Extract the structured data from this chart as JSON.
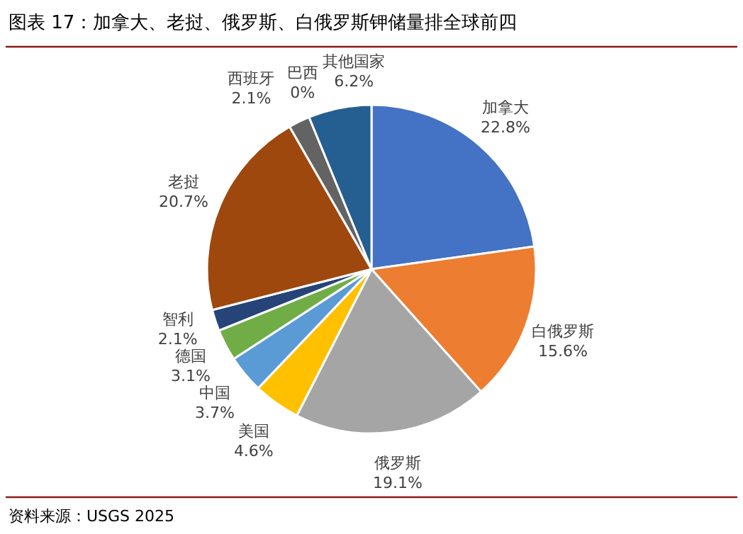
{
  "chart_data": {
    "type": "pie",
    "title": "图表 17：加拿大、老挝、俄罗斯、白俄罗斯钾储量排全球前四",
    "categories": [
      "加拿大",
      "白俄罗斯",
      "俄罗斯",
      "美国",
      "中国",
      "德国",
      "智利",
      "老挝",
      "西班牙",
      "巴西",
      "其他国家"
    ],
    "values": [
      22.8,
      15.6,
      19.1,
      4.6,
      3.7,
      3.1,
      2.1,
      20.7,
      2.1,
      0,
      6.2
    ],
    "value_labels": [
      "22.8%",
      "15.6%",
      "19.1%",
      "4.6%",
      "3.7%",
      "3.1%",
      "2.1%",
      "20.7%",
      "2.1%",
      "0%",
      "6.2%"
    ],
    "colors": [
      "#4472c4",
      "#ed7d31",
      "#a5a5a5",
      "#ffc000",
      "#5b9bd5",
      "#70ad47",
      "#264478",
      "#9e480e",
      "#636363",
      "#997300",
      "#255e91"
    ],
    "annotations": [
      "资料来源：USGS 2025"
    ]
  }
}
